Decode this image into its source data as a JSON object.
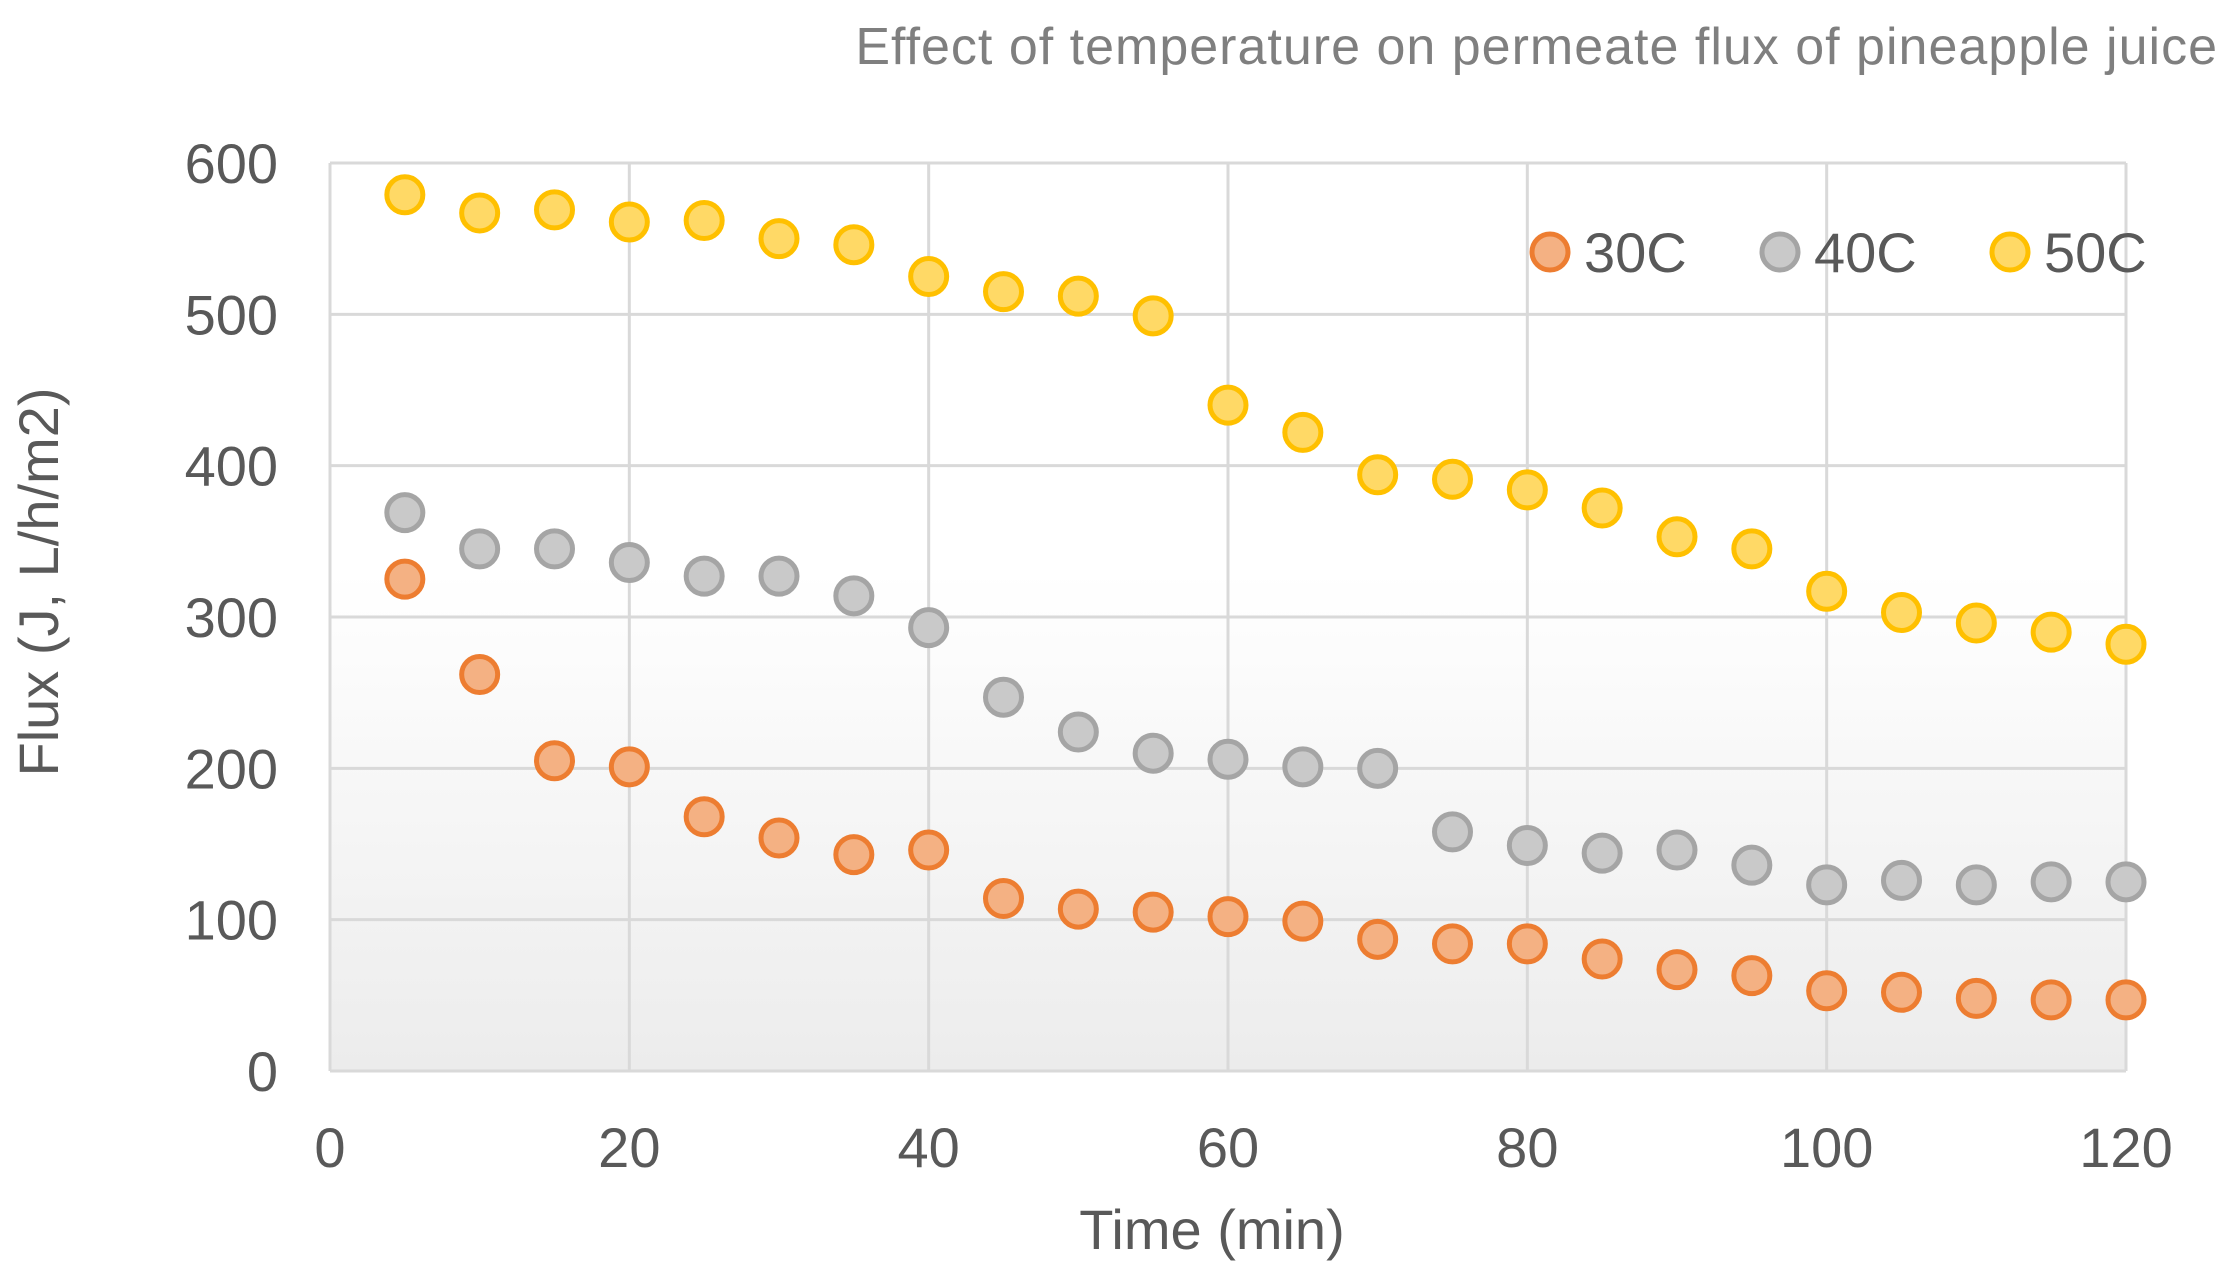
{
  "chart_data": {
    "type": "scatter",
    "title": "Effect of temperature on permeate flux of pineapple juice",
    "xlabel": "Time (min)",
    "ylabel": "Flux (J, L/h/m2)",
    "xlim": [
      0,
      120
    ],
    "ylim": [
      0,
      600
    ],
    "xticks": [
      0,
      20,
      40,
      60,
      80,
      100,
      120
    ],
    "yticks": [
      0,
      100,
      200,
      300,
      400,
      500,
      600
    ],
    "grid": true,
    "legend": "top-right",
    "x": [
      5,
      10,
      15,
      20,
      25,
      30,
      35,
      40,
      45,
      50,
      55,
      60,
      65,
      70,
      75,
      80,
      85,
      90,
      95,
      100,
      105,
      110,
      115,
      120
    ],
    "series": [
      {
        "name": "30C",
        "color": "#ED7D31",
        "fill": "#F4B183",
        "values": [
          325,
          262,
          205,
          201,
          168,
          154,
          143,
          146,
          114,
          107,
          105,
          102,
          99,
          87,
          84,
          84,
          74,
          67,
          63,
          53,
          52,
          48,
          47,
          47
        ]
      },
      {
        "name": "40C",
        "color": "#A5A5A5",
        "fill": "#C9C9C9",
        "values": [
          369,
          345,
          345,
          336,
          327,
          327,
          314,
          293,
          247,
          224,
          210,
          206,
          201,
          200,
          158,
          149,
          144,
          146,
          136,
          123,
          126,
          123,
          125,
          125
        ]
      },
      {
        "name": "50C",
        "color": "#FFC000",
        "fill": "#FFD966",
        "values": [
          579,
          567,
          569,
          561,
          562,
          550,
          546,
          525,
          515,
          512,
          499,
          440,
          422,
          394,
          391,
          384,
          372,
          353,
          345,
          317,
          303,
          296,
          290,
          282
        ]
      }
    ]
  }
}
